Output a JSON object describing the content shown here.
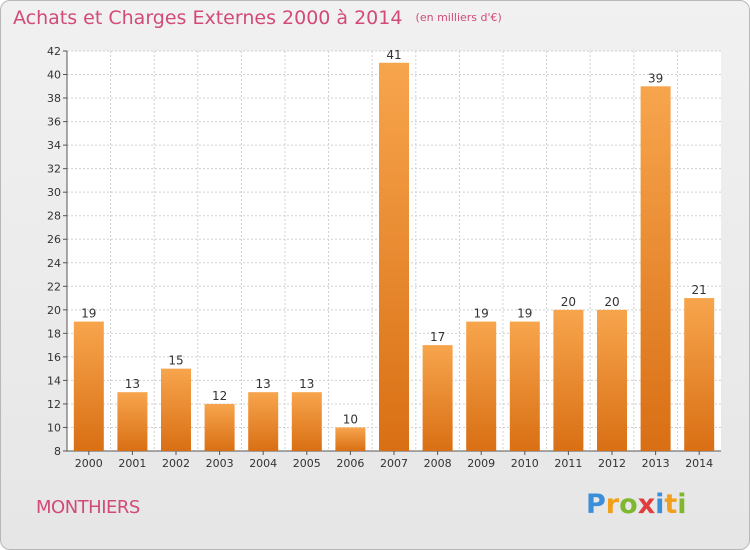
{
  "header": {
    "title": "Achats et Charges Externes 2000 à 2014",
    "subtitle": "(en milliers d'€)"
  },
  "footer": {
    "town": "MONTHIERS",
    "brand": "Proxiti",
    "brand_letters": [
      "P",
      "r",
      "o",
      "x",
      "i",
      "t",
      "i"
    ]
  },
  "colors": {
    "bar_top": "#f7a54d",
    "bar_bottom": "#d96f14",
    "grid": "#d0d0d0",
    "title": "#d24a7a"
  },
  "chart_data": {
    "type": "bar",
    "title": "Achats et Charges Externes 2000 à 2014",
    "subtitle": "(en milliers d'€)",
    "categories": [
      "2000",
      "2001",
      "2002",
      "2003",
      "2004",
      "2005",
      "2006",
      "2007",
      "2008",
      "2009",
      "2010",
      "2011",
      "2012",
      "2013",
      "2014"
    ],
    "values": [
      19,
      13,
      15,
      12,
      13,
      13,
      10,
      41,
      17,
      19,
      19,
      20,
      20,
      39,
      21
    ],
    "ylim": [
      8,
      42
    ],
    "yticks": [
      8,
      10,
      12,
      14,
      16,
      18,
      20,
      22,
      24,
      26,
      28,
      30,
      32,
      34,
      36,
      38,
      40,
      42
    ],
    "grid": true,
    "data_labels": true
  }
}
